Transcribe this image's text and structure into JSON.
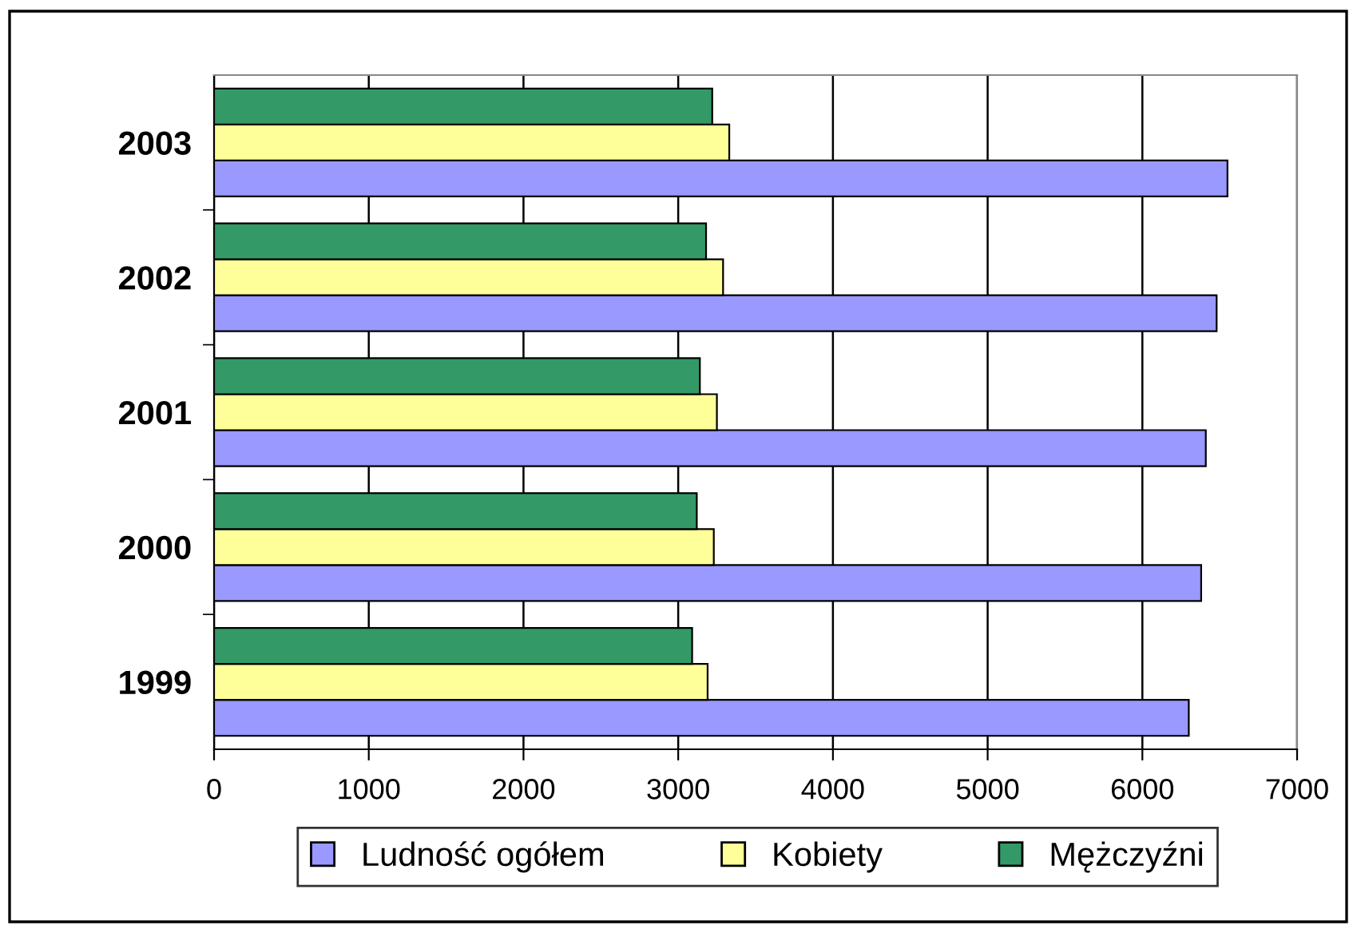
{
  "chart_data": {
    "type": "bar",
    "orientation": "horizontal",
    "categories": [
      "2003",
      "2002",
      "2001",
      "2000",
      "1999"
    ],
    "series": [
      {
        "name": "Ludność ogółem",
        "color": "#9999ff",
        "values": [
          6550,
          6480,
          6410,
          6380,
          6300
        ]
      },
      {
        "name": "Kobiety",
        "color": "#ffff99",
        "values": [
          3330,
          3290,
          3250,
          3230,
          3190
        ]
      },
      {
        "name": "Mężczyźni",
        "color": "#339966",
        "values": [
          3220,
          3180,
          3140,
          3120,
          3090
        ]
      }
    ],
    "xlim": [
      0,
      7000
    ],
    "xticks": [
      0,
      1000,
      2000,
      3000,
      4000,
      5000,
      6000,
      7000
    ],
    "grid": "x",
    "legend": "bottom"
  }
}
